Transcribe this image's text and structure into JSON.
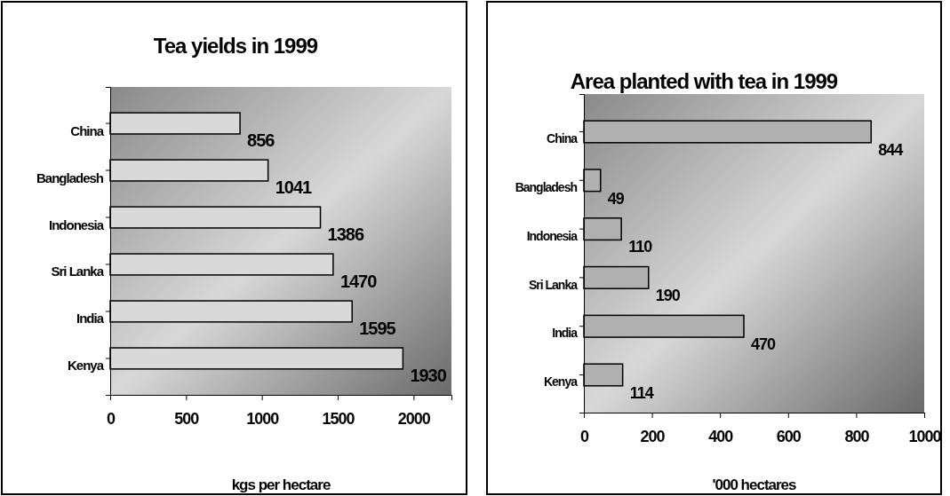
{
  "chart_data": [
    {
      "type": "bar",
      "orientation": "horizontal",
      "title": "Tea yields in 1999",
      "xlabel": "kgs per hectare",
      "categories": [
        "China",
        "Bangladesh",
        "Indonesia",
        "Sri Lanka",
        "India",
        "Kenya"
      ],
      "values": [
        856,
        1041,
        1386,
        1470,
        1595,
        1930
      ],
      "color": "#d9d9d9",
      "xlim": [
        0,
        2250
      ],
      "xticks": [
        0,
        500,
        1000,
        1500,
        2000
      ],
      "data_labels": true,
      "grid": false
    },
    {
      "type": "bar",
      "orientation": "horizontal",
      "title": "Area planted with tea in 1999",
      "xlabel": "'000 hectares",
      "categories": [
        "China",
        "Bangladesh",
        "Indonesia",
        "Sri Lanka",
        "India",
        "Kenya"
      ],
      "values": [
        844,
        49,
        110,
        190,
        470,
        114
      ],
      "color": "#b0b0b0",
      "xlim": [
        0,
        1000
      ],
      "xticks": [
        0,
        200,
        400,
        600,
        800,
        1000
      ],
      "data_labels": true,
      "grid": false
    }
  ]
}
